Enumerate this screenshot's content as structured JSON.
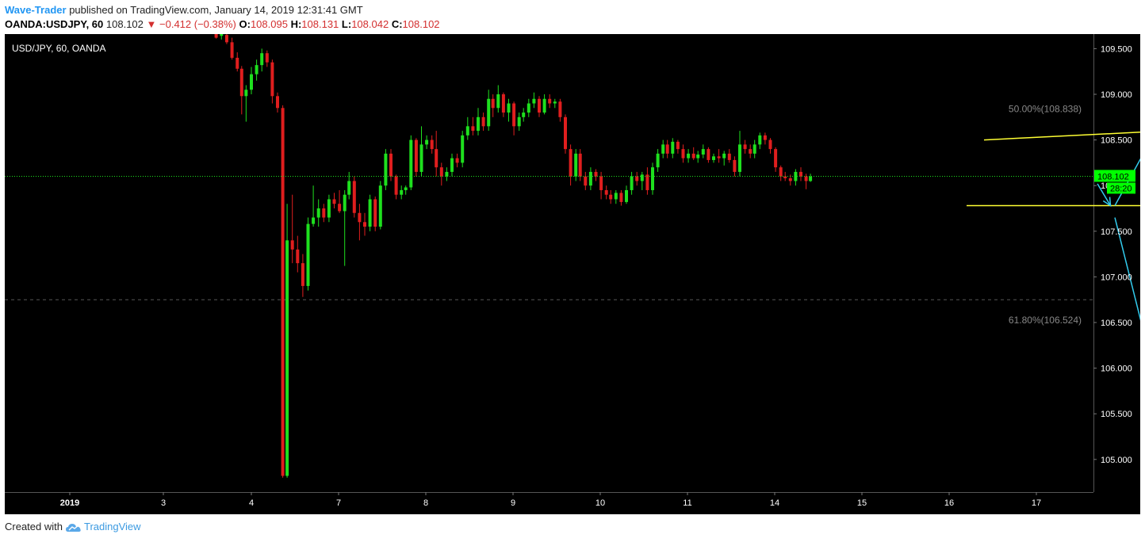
{
  "header": {
    "author": "Wave-Trader",
    "published_text": "published on TradingView.com, January 14, 2019 12:31:41 GMT",
    "symbol_line": "OANDA:USDJPY, 60",
    "last_price": "108.102",
    "change_arrow": "▼",
    "change_text": "−0.412 (−0.38%)",
    "open_label": "O:",
    "open_value": "108.095",
    "high_label": "H:",
    "high_value": "108.131",
    "low_label": "L:",
    "low_value": "108.042",
    "close_label": "C:",
    "close_value": "108.102"
  },
  "footer": {
    "created_with": "Created with",
    "brand": "TradingView",
    "logo_icon": "tradingview-cloud-icon"
  },
  "colors": {
    "background": "#000000",
    "bull": "#1ee01e",
    "bear": "#e01e1e",
    "trendline": "#ffff33",
    "arrow": "#33ccee",
    "price_label_bg": "#00ff00",
    "axis_text": "#ffffff",
    "fib_text": "#888888"
  },
  "chart_data": {
    "type": "candlestick",
    "title": "USD/JPY, 60, OANDA",
    "x_ticks": [
      "2019",
      "3",
      "4",
      "7",
      "8",
      "9",
      "10",
      "11",
      "14",
      "15",
      "16",
      "17"
    ],
    "y_ticks": [
      "109.500",
      "109.000",
      "108.500",
      "108.000",
      "107.500",
      "107.000",
      "106.500",
      "106.000",
      "105.500",
      "105.000"
    ],
    "ylim": [
      104.65,
      109.65
    ],
    "last_price_label": "108.102",
    "countdown_label": "28:20",
    "fib_levels": [
      {
        "label": "50.00%(108.838)",
        "price": 108.838
      },
      {
        "label": "61.80%(106.524)",
        "price": 106.524
      }
    ],
    "fib_line_price": 106.75,
    "candles": [
      {
        "day": 1.6,
        "open": 109.68,
        "high": 109.7,
        "low": 109.61,
        "close": 109.62
      },
      {
        "day": 1.66,
        "open": 109.64,
        "high": 109.69,
        "low": 109.6,
        "close": 109.66
      },
      {
        "day": 1.72,
        "open": 109.65,
        "high": 109.69,
        "low": 109.55,
        "close": 109.57
      },
      {
        "day": 1.78,
        "open": 109.57,
        "high": 109.62,
        "low": 109.38,
        "close": 109.4
      },
      {
        "day": 1.84,
        "open": 109.4,
        "high": 109.46,
        "low": 109.25,
        "close": 109.28
      },
      {
        "day": 1.89,
        "open": 109.28,
        "high": 109.31,
        "low": 108.78,
        "close": 108.98
      },
      {
        "day": 1.94,
        "open": 108.98,
        "high": 109.1,
        "low": 108.7,
        "close": 109.05
      },
      {
        "day": 2.0,
        "open": 109.05,
        "high": 109.3,
        "low": 109.0,
        "close": 109.22
      },
      {
        "day": 2.06,
        "open": 109.22,
        "high": 109.38,
        "low": 109.15,
        "close": 109.32
      },
      {
        "day": 2.12,
        "open": 109.32,
        "high": 109.5,
        "low": 109.25,
        "close": 109.45
      },
      {
        "day": 2.18,
        "open": 109.45,
        "high": 109.48,
        "low": 109.3,
        "close": 109.35
      },
      {
        "day": 2.24,
        "open": 109.35,
        "high": 109.38,
        "low": 108.9,
        "close": 108.98
      },
      {
        "day": 2.3,
        "open": 108.98,
        "high": 109.02,
        "low": 108.8,
        "close": 108.85
      },
      {
        "day": 2.36,
        "open": 108.85,
        "high": 108.88,
        "low": 104.8,
        "close": 104.82
      },
      {
        "day": 2.41,
        "open": 104.82,
        "high": 107.8,
        "low": 104.8,
        "close": 107.4
      },
      {
        "day": 2.47,
        "open": 107.4,
        "high": 107.9,
        "low": 107.15,
        "close": 107.3
      },
      {
        "day": 2.53,
        "open": 107.3,
        "high": 107.45,
        "low": 107.05,
        "close": 107.15
      },
      {
        "day": 2.59,
        "open": 107.15,
        "high": 107.25,
        "low": 106.78,
        "close": 106.9
      },
      {
        "day": 2.65,
        "open": 106.9,
        "high": 107.65,
        "low": 106.85,
        "close": 107.58
      },
      {
        "day": 2.71,
        "open": 107.58,
        "high": 108.0,
        "low": 107.55,
        "close": 107.65
      },
      {
        "day": 2.77,
        "open": 107.65,
        "high": 107.85,
        "low": 107.55,
        "close": 107.75
      },
      {
        "day": 2.83,
        "open": 107.75,
        "high": 107.8,
        "low": 107.6,
        "close": 107.65
      },
      {
        "day": 2.89,
        "open": 107.65,
        "high": 107.9,
        "low": 107.6,
        "close": 107.85
      },
      {
        "day": 2.95,
        "open": 107.85,
        "high": 107.92,
        "low": 107.75,
        "close": 107.8
      },
      {
        "day": 3.01,
        "open": 107.8,
        "high": 107.95,
        "low": 107.7,
        "close": 107.72
      },
      {
        "day": 3.07,
        "open": 107.72,
        "high": 107.95,
        "low": 107.12,
        "close": 107.9
      },
      {
        "day": 3.12,
        "open": 107.9,
        "high": 108.15,
        "low": 107.85,
        "close": 108.05
      },
      {
        "day": 3.18,
        "open": 108.05,
        "high": 108.1,
        "low": 107.65,
        "close": 107.7
      },
      {
        "day": 3.24,
        "open": 107.7,
        "high": 107.8,
        "low": 107.4,
        "close": 107.6
      },
      {
        "day": 3.3,
        "open": 107.6,
        "high": 107.7,
        "low": 107.45,
        "close": 107.55
      },
      {
        "day": 3.36,
        "open": 107.55,
        "high": 107.9,
        "low": 107.5,
        "close": 107.85
      },
      {
        "day": 3.42,
        "open": 107.85,
        "high": 107.88,
        "low": 107.5,
        "close": 107.55
      },
      {
        "day": 3.48,
        "open": 107.55,
        "high": 108.05,
        "low": 107.52,
        "close": 108.0
      },
      {
        "day": 3.54,
        "open": 108.0,
        "high": 108.4,
        "low": 107.95,
        "close": 108.35
      },
      {
        "day": 3.6,
        "open": 108.35,
        "high": 108.4,
        "low": 108.05,
        "close": 108.1
      },
      {
        "day": 3.66,
        "open": 108.1,
        "high": 108.12,
        "low": 107.85,
        "close": 107.9
      },
      {
        "day": 3.72,
        "open": 107.9,
        "high": 108.0,
        "low": 107.85,
        "close": 107.95
      },
      {
        "day": 3.77,
        "open": 107.95,
        "high": 108.0,
        "low": 107.9,
        "close": 107.98
      },
      {
        "day": 3.83,
        "open": 107.98,
        "high": 108.55,
        "low": 107.95,
        "close": 108.5
      },
      {
        "day": 3.89,
        "open": 108.5,
        "high": 108.52,
        "low": 108.1,
        "close": 108.15
      },
      {
        "day": 3.95,
        "open": 108.15,
        "high": 108.65,
        "low": 108.1,
        "close": 108.45
      },
      {
        "day": 4.01,
        "open": 108.45,
        "high": 108.55,
        "low": 108.4,
        "close": 108.5
      },
      {
        "day": 4.07,
        "open": 108.5,
        "high": 108.55,
        "low": 108.35,
        "close": 108.4
      },
      {
        "day": 4.12,
        "open": 108.4,
        "high": 108.6,
        "low": 108.1,
        "close": 108.2
      },
      {
        "day": 4.18,
        "open": 108.2,
        "high": 108.25,
        "low": 108.0,
        "close": 108.1
      },
      {
        "day": 4.24,
        "open": 108.1,
        "high": 108.2,
        "low": 108.05,
        "close": 108.15
      },
      {
        "day": 4.3,
        "open": 108.15,
        "high": 108.35,
        "low": 108.1,
        "close": 108.3
      },
      {
        "day": 4.36,
        "open": 108.3,
        "high": 108.35,
        "low": 108.2,
        "close": 108.25
      },
      {
        "day": 4.42,
        "open": 108.25,
        "high": 108.6,
        "low": 108.2,
        "close": 108.55
      },
      {
        "day": 4.48,
        "open": 108.55,
        "high": 108.75,
        "low": 108.5,
        "close": 108.65
      },
      {
        "day": 4.54,
        "open": 108.65,
        "high": 108.75,
        "low": 108.55,
        "close": 108.6
      },
      {
        "day": 4.6,
        "open": 108.6,
        "high": 108.85,
        "low": 108.55,
        "close": 108.75
      },
      {
        "day": 4.66,
        "open": 108.75,
        "high": 108.8,
        "low": 108.6,
        "close": 108.65
      },
      {
        "day": 4.72,
        "open": 108.65,
        "high": 109.05,
        "low": 108.6,
        "close": 108.95
      },
      {
        "day": 4.77,
        "open": 108.95,
        "high": 109.0,
        "low": 108.75,
        "close": 108.85
      },
      {
        "day": 4.83,
        "open": 108.85,
        "high": 109.1,
        "low": 108.8,
        "close": 109.0
      },
      {
        "day": 4.89,
        "open": 109.0,
        "high": 109.02,
        "low": 108.75,
        "close": 108.8
      },
      {
        "day": 4.95,
        "open": 108.8,
        "high": 108.95,
        "low": 108.7,
        "close": 108.9
      },
      {
        "day": 5.01,
        "open": 108.9,
        "high": 108.92,
        "low": 108.55,
        "close": 108.65
      },
      {
        "day": 5.07,
        "open": 108.65,
        "high": 108.8,
        "low": 108.6,
        "close": 108.75
      },
      {
        "day": 5.12,
        "open": 108.75,
        "high": 108.85,
        "low": 108.7,
        "close": 108.8
      },
      {
        "day": 5.18,
        "open": 108.8,
        "high": 108.95,
        "low": 108.75,
        "close": 108.9
      },
      {
        "day": 5.24,
        "open": 108.9,
        "high": 109.02,
        "low": 108.85,
        "close": 108.95
      },
      {
        "day": 5.3,
        "open": 108.95,
        "high": 108.98,
        "low": 108.75,
        "close": 108.8
      },
      {
        "day": 5.36,
        "open": 108.8,
        "high": 109.0,
        "low": 108.78,
        "close": 108.95
      },
      {
        "day": 5.42,
        "open": 108.95,
        "high": 109.0,
        "low": 108.85,
        "close": 108.9
      },
      {
        "day": 5.48,
        "open": 108.9,
        "high": 108.95,
        "low": 108.85,
        "close": 108.92
      },
      {
        "day": 5.54,
        "open": 108.92,
        "high": 108.95,
        "low": 108.7,
        "close": 108.75
      },
      {
        "day": 5.6,
        "open": 108.75,
        "high": 108.78,
        "low": 108.35,
        "close": 108.4
      },
      {
        "day": 5.66,
        "open": 108.4,
        "high": 108.45,
        "low": 108.0,
        "close": 108.1
      },
      {
        "day": 5.72,
        "open": 108.1,
        "high": 108.4,
        "low": 108.05,
        "close": 108.35
      },
      {
        "day": 5.77,
        "open": 108.35,
        "high": 108.4,
        "low": 108.05,
        "close": 108.1
      },
      {
        "day": 5.83,
        "open": 108.1,
        "high": 108.15,
        "low": 107.95,
        "close": 108.0
      },
      {
        "day": 5.89,
        "open": 108.0,
        "high": 108.2,
        "low": 107.95,
        "close": 108.15
      },
      {
        "day": 5.95,
        "open": 108.15,
        "high": 108.18,
        "low": 108.05,
        "close": 108.1
      },
      {
        "day": 6.01,
        "open": 108.1,
        "high": 108.15,
        "low": 107.85,
        "close": 107.95
      },
      {
        "day": 6.07,
        "open": 107.95,
        "high": 108.0,
        "low": 107.85,
        "close": 107.9
      },
      {
        "day": 6.12,
        "open": 107.9,
        "high": 107.95,
        "low": 107.8,
        "close": 107.85
      },
      {
        "day": 6.18,
        "open": 107.85,
        "high": 107.95,
        "low": 107.8,
        "close": 107.92
      },
      {
        "day": 6.24,
        "open": 107.92,
        "high": 107.95,
        "low": 107.78,
        "close": 107.82
      },
      {
        "day": 6.3,
        "open": 107.82,
        "high": 108.0,
        "low": 107.8,
        "close": 107.95
      },
      {
        "day": 6.36,
        "open": 107.95,
        "high": 108.15,
        "low": 107.9,
        "close": 108.1
      },
      {
        "day": 6.42,
        "open": 108.1,
        "high": 108.15,
        "low": 108.0,
        "close": 108.05
      },
      {
        "day": 6.48,
        "open": 108.05,
        "high": 108.15,
        "low": 107.95,
        "close": 108.12
      },
      {
        "day": 6.54,
        "open": 108.12,
        "high": 108.2,
        "low": 107.9,
        "close": 107.95
      },
      {
        "day": 6.6,
        "open": 107.95,
        "high": 108.25,
        "low": 107.9,
        "close": 108.2
      },
      {
        "day": 6.66,
        "open": 108.2,
        "high": 108.4,
        "low": 108.15,
        "close": 108.35
      },
      {
        "day": 6.72,
        "open": 108.35,
        "high": 108.5,
        "low": 108.3,
        "close": 108.45
      },
      {
        "day": 6.77,
        "open": 108.45,
        "high": 108.5,
        "low": 108.3,
        "close": 108.35
      },
      {
        "day": 6.83,
        "open": 108.35,
        "high": 108.52,
        "low": 108.3,
        "close": 108.48
      },
      {
        "day": 6.89,
        "open": 108.48,
        "high": 108.5,
        "low": 108.35,
        "close": 108.4
      },
      {
        "day": 6.95,
        "open": 108.4,
        "high": 108.45,
        "low": 108.25,
        "close": 108.3
      },
      {
        "day": 7.01,
        "open": 108.3,
        "high": 108.4,
        "low": 108.25,
        "close": 108.35
      },
      {
        "day": 7.07,
        "open": 108.35,
        "high": 108.42,
        "low": 108.28,
        "close": 108.3
      },
      {
        "day": 7.12,
        "open": 108.3,
        "high": 108.38,
        "low": 108.25,
        "close": 108.34
      },
      {
        "day": 7.18,
        "open": 108.34,
        "high": 108.45,
        "low": 108.3,
        "close": 108.4
      },
      {
        "day": 7.24,
        "open": 108.4,
        "high": 108.42,
        "low": 108.25,
        "close": 108.28
      },
      {
        "day": 7.3,
        "open": 108.28,
        "high": 108.35,
        "low": 108.25,
        "close": 108.32
      },
      {
        "day": 7.36,
        "open": 108.32,
        "high": 108.4,
        "low": 108.25,
        "close": 108.3
      },
      {
        "day": 7.42,
        "open": 108.3,
        "high": 108.38,
        "low": 108.22,
        "close": 108.35
      },
      {
        "day": 7.48,
        "open": 108.35,
        "high": 108.4,
        "low": 108.25,
        "close": 108.28
      },
      {
        "day": 7.54,
        "open": 108.28,
        "high": 108.32,
        "low": 108.1,
        "close": 108.15
      },
      {
        "day": 7.6,
        "open": 108.15,
        "high": 108.6,
        "low": 108.1,
        "close": 108.45
      },
      {
        "day": 7.66,
        "open": 108.45,
        "high": 108.5,
        "low": 108.35,
        "close": 108.4
      },
      {
        "day": 7.72,
        "open": 108.4,
        "high": 108.45,
        "low": 108.3,
        "close": 108.35
      },
      {
        "day": 7.77,
        "open": 108.35,
        "high": 108.5,
        "low": 108.3,
        "close": 108.45
      },
      {
        "day": 7.83,
        "open": 108.45,
        "high": 108.58,
        "low": 108.4,
        "close": 108.55
      },
      {
        "day": 7.89,
        "open": 108.55,
        "high": 108.58,
        "low": 108.45,
        "close": 108.5
      },
      {
        "day": 7.95,
        "open": 108.5,
        "high": 108.52,
        "low": 108.35,
        "close": 108.4
      },
      {
        "day": 8.01,
        "open": 108.4,
        "high": 108.42,
        "low": 108.15,
        "close": 108.2
      },
      {
        "day": 8.07,
        "open": 108.2,
        "high": 108.22,
        "low": 108.05,
        "close": 108.1
      },
      {
        "day": 8.12,
        "open": 108.1,
        "high": 108.15,
        "low": 108.05,
        "close": 108.08
      },
      {
        "day": 8.18,
        "open": 108.08,
        "high": 108.12,
        "low": 108.0,
        "close": 108.05
      },
      {
        "day": 8.24,
        "open": 108.05,
        "high": 108.18,
        "low": 108.0,
        "close": 108.15
      },
      {
        "day": 8.3,
        "open": 108.15,
        "high": 108.2,
        "low": 108.05,
        "close": 108.1
      },
      {
        "day": 8.36,
        "open": 108.1,
        "high": 108.13,
        "low": 107.96,
        "close": 108.05
      },
      {
        "day": 8.41,
        "open": 108.05,
        "high": 108.13,
        "low": 108.04,
        "close": 108.1
      }
    ],
    "drawings": {
      "upper_trendline": {
        "x": [
          10.4,
          14.6
        ],
        "price": [
          108.5,
          108.7
        ]
      },
      "lower_trendline": {
        "x": [
          10.2,
          14.6
        ],
        "price": [
          107.78,
          107.78
        ]
      },
      "arrows": [
        {
          "from": [
            11.7,
            108.02
          ],
          "to": [
            11.85,
            107.78
          ]
        },
        {
          "from": [
            11.9,
            107.78
          ],
          "to": [
            12.4,
            108.65
          ]
        },
        {
          "from": [
            12.4,
            108.65
          ],
          "to": [
            12.75,
            107.78
          ]
        },
        {
          "from": [
            11.9,
            107.65
          ],
          "to": [
            12.65,
            104.8
          ]
        },
        {
          "from": [
            12.8,
            107.65
          ],
          "to": [
            13.75,
            104.8
          ]
        }
      ]
    }
  }
}
